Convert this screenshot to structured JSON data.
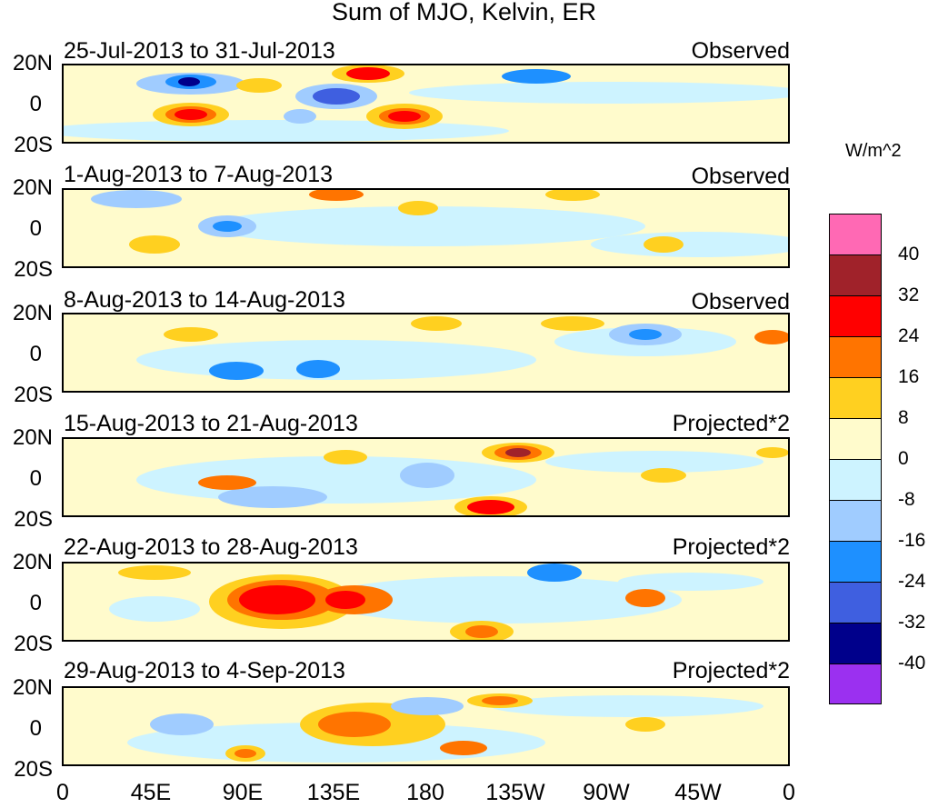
{
  "title": "Sum of MJO, Kelvin, ER",
  "colorbar": {
    "units": "W/m^2",
    "colors": [
      "#ff69b4",
      "#a0222a",
      "#ff0000",
      "#ff7400",
      "#ffd020",
      "#fffbcc",
      "#cdf3ff",
      "#a0ccff",
      "#1e90ff",
      "#3f5fe0",
      "#00008b",
      "#9b30f0"
    ],
    "labels": [
      "40",
      "32",
      "24",
      "16",
      "8",
      "0",
      "-8",
      "-16",
      "-24",
      "-32",
      "-40"
    ]
  },
  "axes": {
    "lat_labels": [
      "20N",
      "0",
      "20S"
    ],
    "lon_labels": [
      "0",
      "45E",
      "90E",
      "135E",
      "180",
      "135W",
      "90W",
      "45W",
      "0"
    ]
  },
  "panels": [
    {
      "date_range": "25-Jul-2013 to 31-Jul-2013",
      "status": "Observed"
    },
    {
      "date_range": "1-Aug-2013 to 7-Aug-2013",
      "status": "Observed"
    },
    {
      "date_range": "8-Aug-2013 to 14-Aug-2013",
      "status": "Observed"
    },
    {
      "date_range": "15-Aug-2013 to 21-Aug-2013",
      "status": "Projected*2"
    },
    {
      "date_range": "22-Aug-2013 to 28-Aug-2013",
      "status": "Projected*2"
    },
    {
      "date_range": "29-Aug-2013 to 4-Sep-2013",
      "status": "Projected*2"
    }
  ]
}
